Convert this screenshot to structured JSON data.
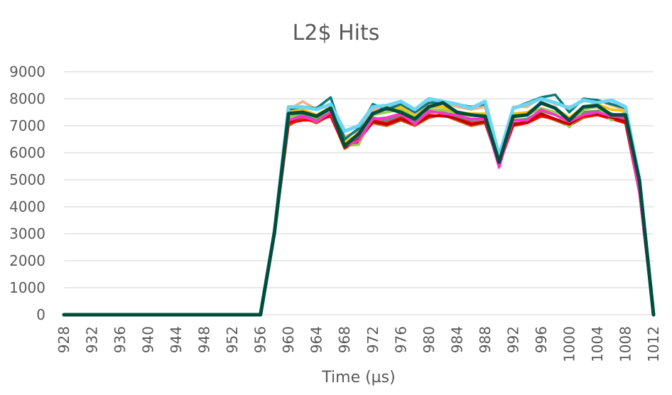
{
  "chart_data": {
    "type": "line",
    "title": "L2$ Hits",
    "xlabel": "Time (µs)",
    "ylabel": "",
    "x_ticks": [
      "928",
      "932",
      "936",
      "940",
      "944",
      "948",
      "952",
      "956",
      "960",
      "964",
      "968",
      "972",
      "976",
      "980",
      "984",
      "988",
      "992",
      "996",
      "1000",
      "1004",
      "1008",
      "1012"
    ],
    "xlim": [
      928,
      1012
    ],
    "ylim": [
      0,
      9000
    ],
    "y_ticks": [
      0,
      1000,
      2000,
      3000,
      4000,
      5000,
      6000,
      7000,
      8000,
      9000
    ],
    "grid": "horizontal",
    "legend": "none",
    "x": [
      928,
      930,
      932,
      934,
      936,
      938,
      940,
      942,
      944,
      946,
      948,
      950,
      952,
      954,
      956,
      958,
      960,
      962,
      964,
      966,
      968,
      970,
      972,
      974,
      976,
      978,
      980,
      982,
      984,
      986,
      988,
      990,
      992,
      994,
      996,
      998,
      1000,
      1002,
      1004,
      1006,
      1008,
      1010,
      1012
    ],
    "series": [
      {
        "color": "#c55a11",
        "values": [
          0,
          0,
          0,
          0,
          0,
          0,
          0,
          0,
          0,
          0,
          0,
          0,
          0,
          0,
          0,
          3000,
          7000,
          7300,
          7100,
          7400,
          6150,
          6500,
          7100,
          7000,
          7200,
          7000,
          7300,
          7400,
          7200,
          7000,
          7100,
          5600,
          7100,
          7100,
          7400,
          7200,
          7000,
          7300,
          7400,
          7300,
          7200,
          4600,
          0
        ]
      },
      {
        "color": "#ff0000",
        "values": [
          0,
          0,
          0,
          0,
          0,
          0,
          0,
          0,
          0,
          0,
          0,
          0,
          0,
          0,
          0,
          3000,
          7100,
          7200,
          7200,
          7350,
          6200,
          6400,
          7200,
          7100,
          7300,
          7100,
          7400,
          7350,
          7300,
          7100,
          7150,
          5550,
          7000,
          7100,
          7350,
          7250,
          7100,
          7350,
          7400,
          7250,
          7100,
          4500,
          0
        ]
      },
      {
        "color": "#7f7f7f",
        "values": [
          0,
          0,
          0,
          0,
          0,
          0,
          0,
          0,
          0,
          0,
          0,
          0,
          0,
          0,
          0,
          3050,
          7200,
          7400,
          7200,
          7500,
          6300,
          6600,
          7300,
          7200,
          7400,
          7150,
          7500,
          7500,
          7350,
          7200,
          7250,
          5650,
          7200,
          7250,
          7550,
          7400,
          7200,
          7500,
          7550,
          7450,
          7300,
          4700,
          0
        ]
      },
      {
        "color": "#92d050",
        "values": [
          0,
          0,
          0,
          0,
          0,
          0,
          0,
          0,
          0,
          0,
          0,
          0,
          0,
          0,
          0,
          3050,
          7300,
          7500,
          7300,
          7600,
          6250,
          6300,
          7400,
          7500,
          7600,
          7300,
          7600,
          7600,
          7450,
          7400,
          7350,
          5700,
          7300,
          7400,
          7650,
          7500,
          6950,
          7600,
          7700,
          7200,
          7500,
          4800,
          0
        ]
      },
      {
        "color": "#ffc000",
        "values": [
          0,
          0,
          0,
          0,
          0,
          0,
          0,
          0,
          0,
          0,
          0,
          0,
          0,
          0,
          0,
          3100,
          7500,
          7600,
          7400,
          7700,
          6400,
          6700,
          7500,
          7600,
          7700,
          7400,
          7700,
          7700,
          7500,
          7450,
          7450,
          5750,
          7450,
          7500,
          7800,
          7650,
          7300,
          7700,
          7800,
          7600,
          7550,
          4850,
          0
        ]
      },
      {
        "color": "#f4b183",
        "values": [
          0,
          0,
          0,
          0,
          0,
          0,
          0,
          0,
          0,
          0,
          0,
          0,
          0,
          0,
          0,
          3100,
          7600,
          7900,
          7600,
          7800,
          6600,
          6800,
          7600,
          7700,
          7800,
          7450,
          7800,
          7900,
          7700,
          7600,
          7700,
          5800,
          7700,
          7700,
          8050,
          7800,
          7700,
          7900,
          7950,
          7750,
          7600,
          4900,
          0
        ]
      },
      {
        "color": "#0b7a75",
        "values": [
          0,
          0,
          0,
          0,
          0,
          0,
          0,
          0,
          0,
          0,
          0,
          0,
          0,
          0,
          0,
          3100,
          7600,
          7700,
          7650,
          8050,
          6500,
          6900,
          7800,
          7600,
          7800,
          7500,
          7850,
          7900,
          7800,
          7700,
          7800,
          5850,
          7650,
          7850,
          8050,
          8150,
          7500,
          8000,
          7950,
          7800,
          7650,
          4950,
          0
        ]
      },
      {
        "color": "#c00000",
        "values": [
          0,
          0,
          0,
          0,
          0,
          0,
          0,
          0,
          0,
          0,
          0,
          0,
          0,
          0,
          0,
          3000,
          7150,
          7350,
          7150,
          7450,
          6200,
          6500,
          7150,
          7050,
          7250,
          7050,
          7350,
          7400,
          7250,
          7050,
          7150,
          5550,
          7050,
          7150,
          7450,
          7250,
          7050,
          7400,
          7450,
          7300,
          7150,
          4550,
          0
        ]
      },
      {
        "color": "#ff33cc",
        "values": [
          0,
          0,
          0,
          0,
          0,
          0,
          0,
          0,
          0,
          0,
          0,
          0,
          0,
          0,
          0,
          3000,
          7200,
          7350,
          7150,
          7500,
          6250,
          6450,
          7250,
          7300,
          7450,
          7050,
          7550,
          7450,
          7400,
          7250,
          7250,
          5450,
          7200,
          7200,
          7600,
          7400,
          7150,
          7400,
          7500,
          7350,
          7300,
          4500,
          0
        ]
      },
      {
        "color": "#6dd5f5",
        "values": [
          0,
          0,
          0,
          0,
          0,
          0,
          0,
          0,
          0,
          0,
          0,
          0,
          0,
          0,
          0,
          3100,
          7700,
          7700,
          7600,
          7800,
          6800,
          7000,
          7700,
          7750,
          7900,
          7600,
          8000,
          7900,
          7800,
          7650,
          7900,
          5900,
          7650,
          7800,
          8000,
          7850,
          7650,
          7950,
          7850,
          7950,
          7700,
          5000,
          0
        ]
      },
      {
        "color": "#004d3b",
        "values": [
          0,
          0,
          0,
          0,
          0,
          0,
          0,
          0,
          0,
          0,
          0,
          0,
          0,
          0,
          0,
          3050,
          7450,
          7500,
          7350,
          7650,
          6250,
          6700,
          7450,
          7650,
          7500,
          7250,
          7700,
          7850,
          7500,
          7400,
          7350,
          5650,
          7350,
          7400,
          7850,
          7650,
          7200,
          7700,
          7750,
          7400,
          7400,
          4950,
          0
        ]
      }
    ]
  }
}
